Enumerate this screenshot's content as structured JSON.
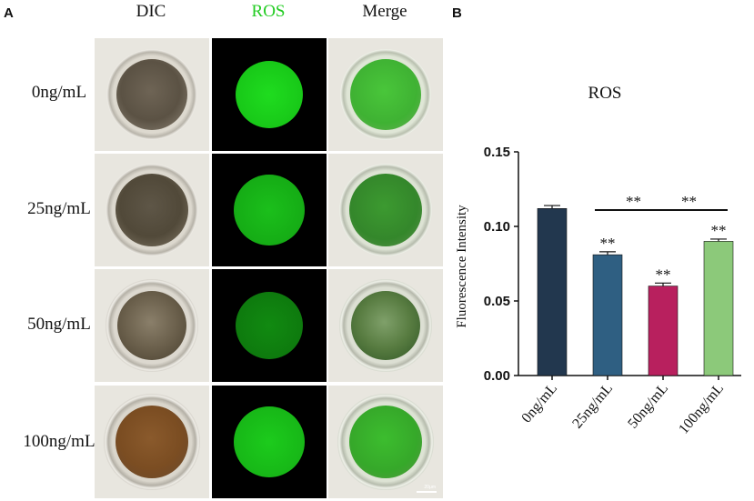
{
  "panel_a": {
    "letter": "A",
    "columns": [
      "DIC",
      "ROS",
      "Merge"
    ],
    "rows": [
      "0ng/mL",
      "25ng/mL",
      "50ng/mL",
      "100ng/mL"
    ],
    "scale_bar_label": "20μm"
  },
  "panel_b": {
    "letter": "B"
  },
  "colors": {
    "ros_header": "#22cc22",
    "bar_colors": [
      "#22374e",
      "#2f5f82",
      "#b8205e",
      "#8cc97a"
    ]
  },
  "chart_data": {
    "type": "bar",
    "title": "ROS",
    "ylabel": "Fluorescence Intensity",
    "xlabel": "",
    "categories": [
      "0ng/mL",
      "25ng/mL",
      "50ng/mL",
      "100ng/mL"
    ],
    "values": [
      0.112,
      0.081,
      0.06,
      0.09
    ],
    "errors": [
      0.002,
      0.002,
      0.002,
      0.0015
    ],
    "ylim": [
      0,
      0.15
    ],
    "yticks": [
      "0.00",
      "0.05",
      "0.10",
      "0.15"
    ],
    "significance_marks": [
      "",
      "**",
      "**",
      "**"
    ],
    "brackets": [
      {
        "from": 1,
        "to": 2,
        "label": "**"
      },
      {
        "from": 2,
        "to": 3,
        "label": "**"
      }
    ]
  }
}
